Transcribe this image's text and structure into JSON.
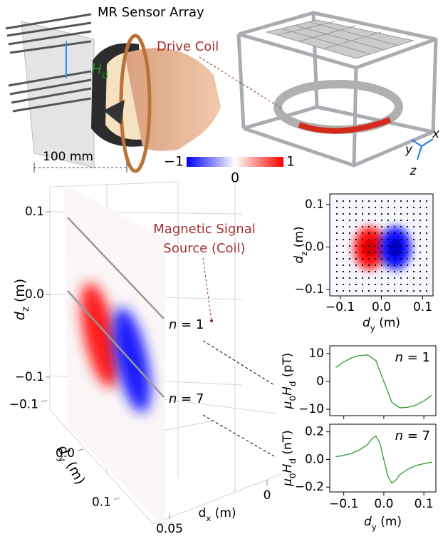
{
  "illustration": {
    "sensor_label": "MR Sensor Array",
    "field_label": [
      {
        "text": "H",
        "style": "italic"
      },
      {
        "text": "d",
        "style": "sub"
      }
    ],
    "scale_label": "100 mm",
    "coil_label": "Drive Coil",
    "axes": {
      "x": "x",
      "y": "y",
      "z": "z"
    }
  },
  "chart_data": [
    {
      "type": "colorbar",
      "lim": [
        -1,
        1
      ],
      "ticks": [
        {
          "value": -1,
          "label": "−1"
        },
        0,
        1
      ],
      "colors": [
        "#0000ff",
        "#ffffff",
        "#ff0000"
      ]
    },
    {
      "type": "surface3d",
      "zlabel": [
        {
          "text": "d",
          "style": "italic"
        },
        {
          "text": "z",
          "style": "sub"
        },
        {
          "text": " (m)"
        }
      ],
      "ylabel": [
        {
          "text": "d",
          "style": "italic"
        },
        {
          "text": "y",
          "style": "sub"
        },
        {
          "text": " (m)"
        }
      ],
      "xlabel": [
        {
          "text": "d"
        },
        {
          "text": "x",
          "style": "sub"
        },
        {
          "text": " (m)"
        }
      ],
      "zticks": [
        0.1,
        {
          "value": 0,
          "label": "0.0"
        },
        {
          "value": -0.1,
          "label": "−0.1"
        }
      ],
      "yticks": [
        {
          "value": -0.1,
          "label": "−0.1"
        },
        {
          "value": 0,
          "label": "0.0"
        },
        0.1
      ],
      "xticks": [
        0.05,
        0
      ],
      "annotation": [
        "Magnetic Signal",
        "Source (Coil)"
      ],
      "sensor_labels": [
        [
          {
            "text": "n",
            "style": "italic"
          },
          {
            "text": " = 1"
          }
        ],
        [
          {
            "text": "n",
            "style": "italic"
          },
          {
            "text": " = 7"
          }
        ]
      ]
    },
    {
      "type": "heatmap",
      "xlabel": [
        {
          "text": "d",
          "style": "italic"
        },
        {
          "text": "y",
          "style": "sub"
        },
        {
          "text": " (m)"
        }
      ],
      "ylabel": [
        {
          "text": "d",
          "style": "italic"
        },
        {
          "text": "z",
          "style": "sub"
        },
        {
          "text": " (m)"
        }
      ],
      "xlim": [
        -0.125,
        0.125
      ],
      "ylim": [
        -0.115,
        0.125
      ],
      "xticks": [
        {
          "value": -0.1,
          "label": "−0.1"
        },
        {
          "value": 0,
          "label": "0.0"
        },
        0.1
      ],
      "yticks": [
        0.1,
        {
          "value": 0,
          "label": "0.0"
        },
        {
          "value": -0.1,
          "label": "−0.1"
        }
      ]
    },
    {
      "type": "line",
      "ylabel": [
        {
          "text": "μ",
          "style": "italic"
        },
        {
          "text": "0",
          "style": "sub"
        },
        {
          "text": "H",
          "style": "italic"
        },
        {
          "text": "d",
          "style": "sub"
        },
        {
          "text": " (pT)"
        }
      ],
      "label": [
        {
          "text": "n",
          "style": "italic"
        },
        {
          "text": " = 1"
        }
      ],
      "xlim": [
        -0.135,
        0.13
      ],
      "ylim": [
        -12.3,
        12.8
      ],
      "yticks": [
        10,
        0,
        {
          "value": -10,
          "label": "−10"
        }
      ],
      "series": [
        {
          "color": "#2f9a2f",
          "x": [
            -0.12,
            -0.1,
            -0.08,
            -0.06,
            -0.04,
            -0.02,
            0,
            0.02,
            0.04,
            0.06,
            0.08,
            0.1,
            0.12
          ],
          "values": [
            5,
            7,
            8.5,
            9.3,
            9.5,
            7.5,
            0,
            -7.5,
            -9.5,
            -9.3,
            -8.5,
            -7,
            -5
          ]
        }
      ]
    },
    {
      "type": "line",
      "xlabel": [
        {
          "text": "d",
          "style": "italic"
        },
        {
          "text": "y",
          "style": "sub"
        },
        {
          "text": " (m)"
        }
      ],
      "ylabel": [
        {
          "text": "μ",
          "style": "italic"
        },
        {
          "text": "0",
          "style": "sub"
        },
        {
          "text": "H",
          "style": "italic"
        },
        {
          "text": "d",
          "style": "sub"
        },
        {
          "text": " (nT)"
        }
      ],
      "label": [
        {
          "text": "n",
          "style": "italic"
        },
        {
          "text": " = 7"
        }
      ],
      "xlim": [
        -0.135,
        0.13
      ],
      "ylim": [
        -0.235,
        0.255
      ],
      "xticks": [
        {
          "value": -0.1,
          "label": "−0.1"
        },
        {
          "value": 0,
          "label": "0.0"
        },
        0.1
      ],
      "yticks": [
        0.2,
        {
          "value": 0,
          "label": "0.0"
        },
        {
          "value": -0.2,
          "label": "−0.2"
        }
      ],
      "series": [
        {
          "color": "#2f9a2f",
          "x": [
            -0.12,
            -0.1,
            -0.08,
            -0.06,
            -0.04,
            -0.03,
            -0.02,
            -0.01,
            0,
            0.01,
            0.02,
            0.03,
            0.04,
            0.06,
            0.08,
            0.1,
            0.12
          ],
          "values": [
            0.02,
            0.03,
            0.045,
            0.07,
            0.11,
            0.15,
            0.17,
            0.12,
            0,
            -0.12,
            -0.17,
            -0.15,
            -0.11,
            -0.07,
            -0.045,
            -0.03,
            -0.02
          ]
        }
      ]
    }
  ]
}
